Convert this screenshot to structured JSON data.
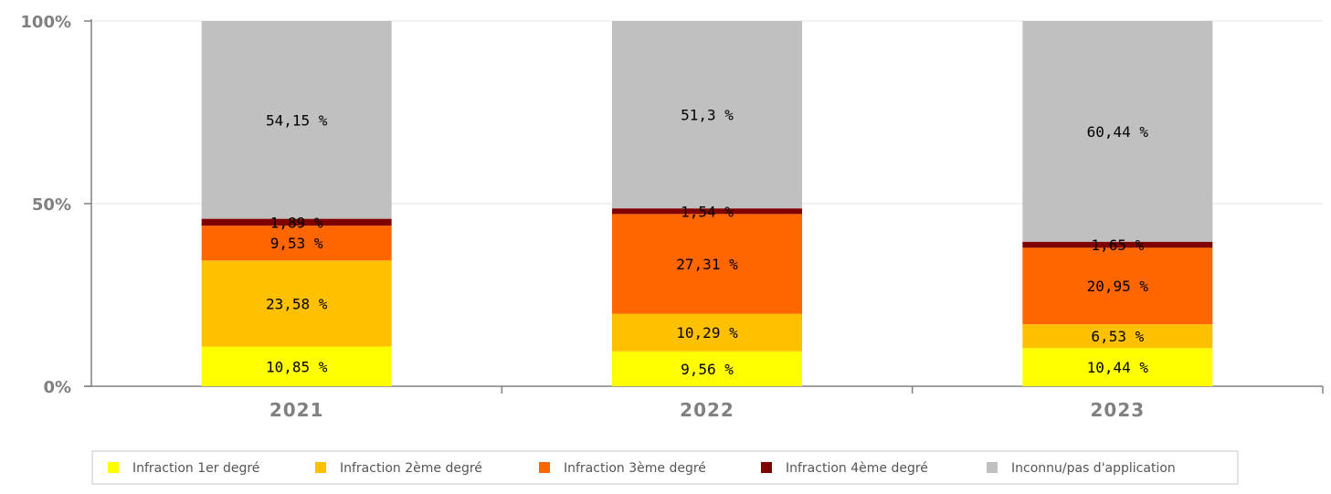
{
  "chart_data": {
    "type": "bar",
    "stacked": true,
    "percent_scale": true,
    "categories": [
      "2021",
      "2022",
      "2023"
    ],
    "series": [
      {
        "name": "Infraction 1er degré",
        "color": "#ffff00",
        "values": [
          10.85,
          9.56,
          10.44
        ],
        "labels": [
          "10,85 %",
          "9,56 %",
          "10,44 %"
        ]
      },
      {
        "name": "Infraction 2ème degré",
        "color": "#ffc000",
        "values": [
          23.58,
          10.29,
          6.53
        ],
        "labels": [
          "23,58 %",
          "10,29 %",
          "6,53 %"
        ]
      },
      {
        "name": "Infraction 3ème degré",
        "color": "#ff6600",
        "values": [
          9.53,
          27.31,
          20.95
        ],
        "labels": [
          "9,53 %",
          "27,31 %",
          "20,95 %"
        ]
      },
      {
        "name": "Infraction 4ème degré",
        "color": "#800000",
        "values": [
          1.89,
          1.54,
          1.65
        ],
        "labels": [
          "1,89 %",
          "1,54 %",
          "1,65 %"
        ]
      },
      {
        "name": "Inconnu/pas d'application",
        "color": "#c0c0c0",
        "values": [
          54.15,
          51.3,
          60.44
        ],
        "labels": [
          "54,15 %",
          "51,3 %",
          "60,44 %"
        ]
      }
    ],
    "yticks": [
      "0%",
      "50%",
      "100%"
    ],
    "ylim": [
      0,
      100
    ],
    "grid": true,
    "legend_position": "bottom"
  }
}
